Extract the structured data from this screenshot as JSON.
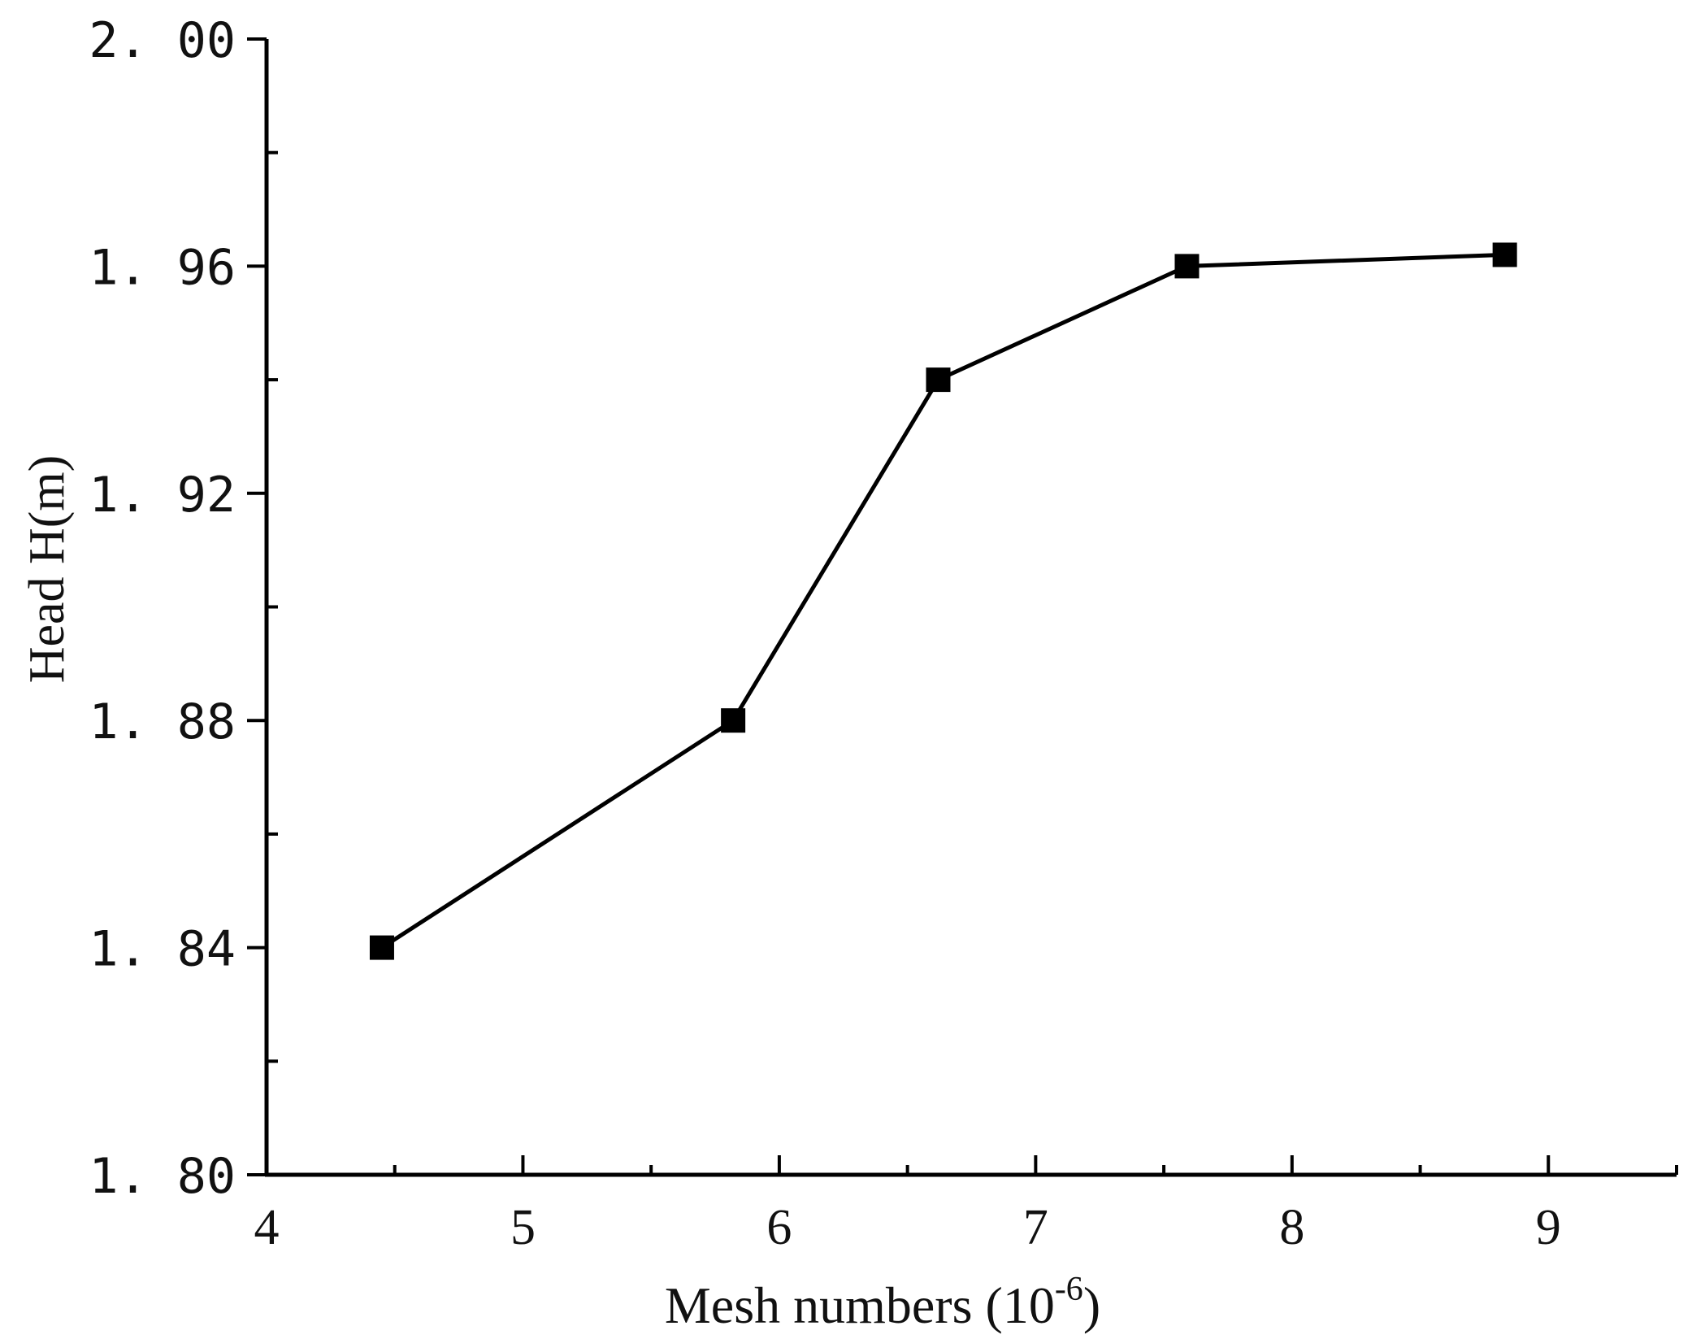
{
  "chart_data": {
    "type": "line",
    "title": "",
    "xlabel": "Mesh numbers (10",
    "xlabel_superscript": "-6",
    "xlabel_suffix": ")",
    "ylabel": "Head H(m)",
    "xlim": [
      4,
      9.5
    ],
    "ylim": [
      1.8,
      2.0
    ],
    "x_ticks": [
      4,
      5,
      6,
      7,
      8,
      9
    ],
    "x_tick_labels": [
      "4",
      "5",
      "6",
      "7",
      "8",
      "9"
    ],
    "y_ticks": [
      1.8,
      1.84,
      1.88,
      1.92,
      1.96,
      2.0
    ],
    "y_tick_labels": [
      "1. 80",
      "1. 84",
      "1. 88",
      "1. 92",
      "1. 96",
      "2. 00"
    ],
    "grid": false,
    "series": [
      {
        "x": [
          4.45,
          5.82,
          6.62,
          7.59,
          8.83
        ],
        "y": [
          1.84,
          1.88,
          1.94,
          1.96,
          1.962
        ],
        "marker": "square",
        "color": "#000000"
      }
    ]
  }
}
